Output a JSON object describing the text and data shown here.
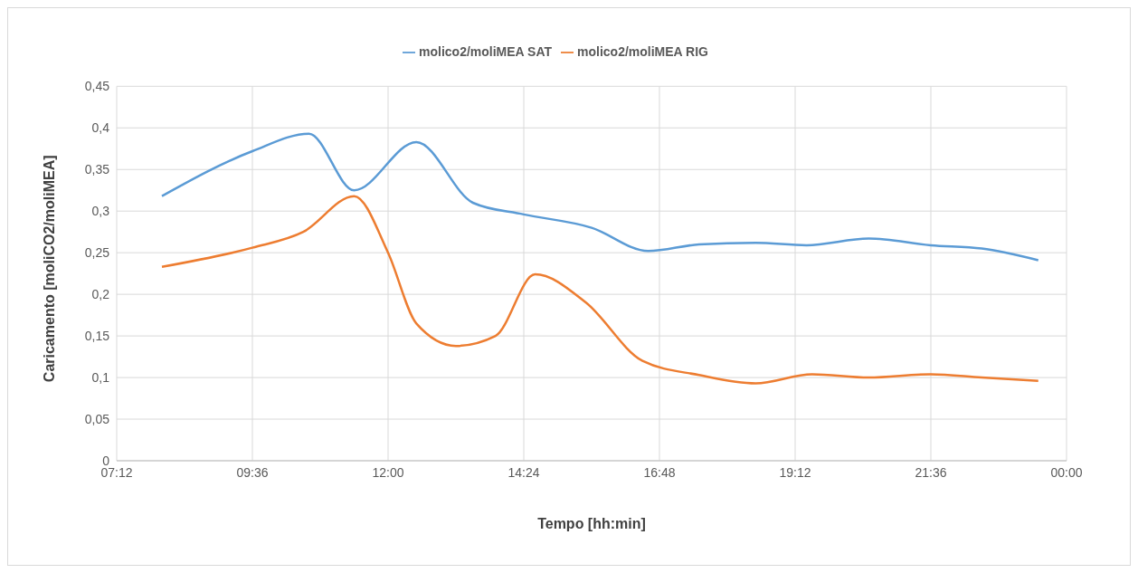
{
  "chart_data": {
    "type": "line",
    "xlabel": "Tempo [hh:min]",
    "ylabel": "Caricamento [moliCO2/moliMEA]",
    "series": [
      {
        "name": "molico2/moliMEA SAT",
        "color": "#5b9bd5",
        "x": [
          8.0,
          9.6,
          10.6,
          11.4,
          12.5,
          13.5,
          14.4,
          15.6,
          16.6,
          17.5,
          18.5,
          19.4,
          20.5,
          21.6,
          22.5,
          23.5
        ],
        "values": [
          0.318,
          0.372,
          0.393,
          0.325,
          0.383,
          0.31,
          0.296,
          0.28,
          0.252,
          0.26,
          0.262,
          0.259,
          0.267,
          0.259,
          0.255,
          0.241
        ]
      },
      {
        "name": "molico2/moliMEA RIG",
        "color": "#ed7d31",
        "x": [
          8.0,
          9.6,
          10.5,
          11.4,
          12.0,
          12.5,
          13.2,
          13.9,
          14.6,
          15.5,
          16.5,
          17.5,
          18.5,
          19.5,
          20.5,
          21.6,
          22.5,
          23.5
        ],
        "values": [
          0.233,
          0.256,
          0.275,
          0.318,
          0.25,
          0.165,
          0.138,
          0.15,
          0.224,
          0.19,
          0.12,
          0.103,
          0.093,
          0.104,
          0.1,
          0.104,
          0.1,
          0.096
        ]
      }
    ],
    "xlim": [
      7.2,
      24
    ],
    "xticks": [
      {
        "value": 7.2,
        "label": "07:12"
      },
      {
        "value": 9.6,
        "label": "09:36"
      },
      {
        "value": 12,
        "label": "12:00"
      },
      {
        "value": 14.4,
        "label": "14:24"
      },
      {
        "value": 16.8,
        "label": "16:48"
      },
      {
        "value": 19.2,
        "label": "19:12"
      },
      {
        "value": 21.6,
        "label": "21:36"
      },
      {
        "value": 24,
        "label": "00:00"
      }
    ],
    "ylim": [
      0,
      0.45
    ],
    "yticks": [
      0,
      {
        "value": 0.05,
        "label": "0,05"
      },
      {
        "value": 0.1,
        "label": "0,1"
      },
      {
        "value": 0.15,
        "label": "0,15"
      },
      {
        "value": 0.2,
        "label": "0,2"
      },
      {
        "value": 0.25,
        "label": "0,25"
      },
      {
        "value": 0.3,
        "label": "0,3"
      },
      {
        "value": 0.35,
        "label": "0,35"
      },
      {
        "value": 0.4,
        "label": "0,4"
      },
      {
        "value": 0.45,
        "label": "0,45"
      }
    ],
    "grid": true,
    "legend": "top",
    "marker": "none",
    "line_style": "solid"
  }
}
